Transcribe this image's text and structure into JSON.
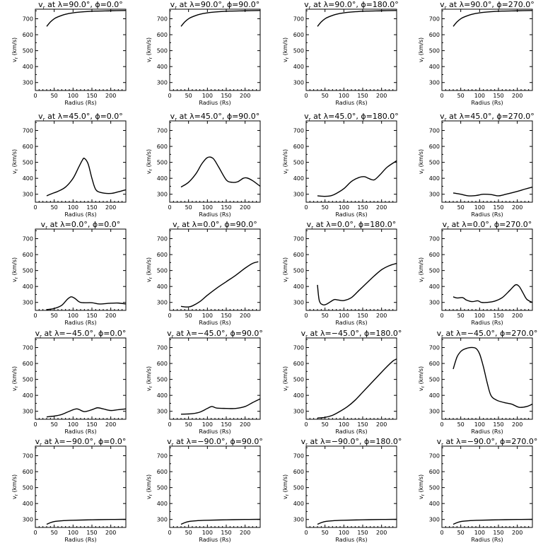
{
  "chart_data": {
    "type": "line",
    "layout": "grid-5x4",
    "xlabel": "Radius (Rs)",
    "ylabel": "vr (km/s)",
    "ylabel_base": "v",
    "ylabel_sub": "r",
    "ylabel_units": " (km/s)",
    "xlim": [
      0,
      240
    ],
    "ylim": [
      250,
      760
    ],
    "xticks": [
      0,
      50,
      100,
      150,
      200
    ],
    "yticks": [
      300,
      400,
      500,
      600,
      700
    ],
    "panels": [
      {
        "title": "vr at λ=90.0°, ϕ=0.0°",
        "title_base": "v",
        "title_sub": "r",
        "title_rest": " at λ=90.0°, ϕ=0.0°",
        "x": [
          30,
          40,
          50,
          60,
          80,
          100,
          130,
          160,
          200,
          240
        ],
        "y": [
          652,
          680,
          700,
          712,
          728,
          737,
          744,
          748,
          750,
          752
        ]
      },
      {
        "title": "vr at λ=90.0°, ϕ=90.0°",
        "title_base": "v",
        "title_sub": "r",
        "title_rest": " at λ=90.0°, ϕ=90.0°",
        "x": [
          30,
          40,
          50,
          60,
          80,
          100,
          130,
          160,
          200,
          240
        ],
        "y": [
          652,
          680,
          700,
          712,
          728,
          737,
          744,
          748,
          750,
          752
        ]
      },
      {
        "title": "vr at λ=90.0°, ϕ=180.0°",
        "title_base": "v",
        "title_sub": "r",
        "title_rest": " at λ=90.0°, ϕ=180.0°",
        "x": [
          30,
          40,
          50,
          60,
          80,
          100,
          130,
          160,
          200,
          240
        ],
        "y": [
          652,
          680,
          700,
          712,
          728,
          737,
          744,
          748,
          750,
          752
        ]
      },
      {
        "title": "vr at λ=90.0°, ϕ=270.0°",
        "title_base": "v",
        "title_sub": "r",
        "title_rest": " at λ=90.0°, ϕ=270.0°",
        "x": [
          30,
          40,
          50,
          60,
          80,
          100,
          130,
          160,
          200,
          240
        ],
        "y": [
          652,
          680,
          700,
          712,
          728,
          737,
          744,
          748,
          750,
          752
        ]
      },
      {
        "title": "vr at λ=45.0°, ϕ=0.0°",
        "title_base": "v",
        "title_sub": "r",
        "title_rest": " at λ=45.0°, ϕ=0.0°",
        "x": [
          30,
          45,
          60,
          80,
          100,
          115,
          125,
          130,
          140,
          150,
          160,
          175,
          200,
          220,
          240
        ],
        "y": [
          290,
          305,
          318,
          345,
          400,
          470,
          515,
          525,
          490,
          400,
          330,
          310,
          305,
          315,
          328
        ]
      },
      {
        "title": "vr at λ=45.0°, ϕ=90.0°",
        "title_base": "v",
        "title_sub": "r",
        "title_rest": " at λ=45.0°, ϕ=90.0°",
        "x": [
          30,
          50,
          70,
          85,
          100,
          115,
          130,
          150,
          165,
          180,
          195,
          205,
          220,
          240
        ],
        "y": [
          345,
          375,
          430,
          490,
          530,
          525,
          470,
          390,
          375,
          378,
          400,
          402,
          385,
          350
        ]
      },
      {
        "title": "vr at λ=45.0°, ϕ=180.0°",
        "title_base": "v",
        "title_sub": "r",
        "title_rest": " at λ=45.0°, ϕ=180.0°",
        "x": [
          30,
          50,
          65,
          80,
          100,
          120,
          140,
          155,
          165,
          180,
          195,
          215,
          240
        ],
        "y": [
          290,
          287,
          290,
          305,
          335,
          380,
          405,
          410,
          400,
          390,
          420,
          470,
          510
        ]
      },
      {
        "title": "vr at λ=45.0°, ϕ=270.0°",
        "title_base": "v",
        "title_sub": "r",
        "title_rest": " at λ=45.0°, ϕ=270.0°",
        "x": [
          30,
          50,
          70,
          90,
          110,
          130,
          150,
          170,
          200,
          220,
          240
        ],
        "y": [
          308,
          300,
          290,
          292,
          300,
          298,
          290,
          300,
          318,
          332,
          345
        ]
      },
      {
        "title": "vr at λ=0.0°, ϕ=0.0°",
        "title_base": "v",
        "title_sub": "r",
        "title_rest": " at λ=0.0°, ϕ=0.0°",
        "x": [
          30,
          50,
          70,
          85,
          95,
          105,
          120,
          150,
          170,
          200,
          220,
          240
        ],
        "y": [
          255,
          262,
          282,
          320,
          335,
          325,
          300,
          298,
          290,
          295,
          296,
          290
        ]
      },
      {
        "title": "vr at λ=0.0°, ϕ=90.0°",
        "title_base": "v",
        "title_sub": "r",
        "title_rest": " at λ=0.0°, ϕ=90.0°",
        "x": [
          30,
          40,
          50,
          60,
          80,
          100,
          125,
          150,
          175,
          200,
          220,
          235
        ],
        "y": [
          275,
          272,
          272,
          278,
          305,
          345,
          390,
          430,
          470,
          515,
          545,
          555
        ]
      },
      {
        "title": "vr at λ=0.0°, ϕ=180.0°",
        "title_base": "v",
        "title_sub": "r",
        "title_rest": " at λ=0.0°, ϕ=180.0°",
        "x": [
          30,
          35,
          45,
          55,
          65,
          75,
          85,
          100,
          120,
          140,
          160,
          180,
          200,
          220,
          240
        ],
        "y": [
          410,
          310,
          285,
          290,
          305,
          318,
          315,
          312,
          330,
          375,
          420,
          465,
          505,
          530,
          545
        ]
      },
      {
        "title": "vr at λ=0.0°, ϕ=270.0°",
        "title_base": "v",
        "title_sub": "r",
        "title_rest": " at λ=0.0°, ϕ=270.0°",
        "x": [
          30,
          40,
          55,
          65,
          80,
          95,
          105,
          120,
          140,
          160,
          180,
          195,
          205,
          215,
          225,
          240
        ],
        "y": [
          335,
          328,
          330,
          315,
          305,
          310,
          300,
          300,
          308,
          330,
          375,
          410,
          400,
          360,
          320,
          300
        ]
      },
      {
        "title": "vr at λ=−45.0°, ϕ=0.0°",
        "title_base": "v",
        "title_sub": "r",
        "title_rest": " at λ=−45.0°, ϕ=0.0°",
        "x": [
          30,
          50,
          70,
          90,
          110,
          130,
          150,
          165,
          180,
          200,
          220,
          240
        ],
        "y": [
          265,
          270,
          280,
          300,
          315,
          298,
          310,
          322,
          315,
          305,
          310,
          315
        ]
      },
      {
        "title": "vr at λ=−45.0°, ϕ=90.0°",
        "title_base": "v",
        "title_sub": "r",
        "title_rest": " at λ=−45.0°, ϕ=90.0°",
        "x": [
          30,
          45,
          60,
          80,
          100,
          112,
          125,
          150,
          175,
          200,
          220,
          240
        ],
        "y": [
          282,
          283,
          285,
          295,
          318,
          330,
          320,
          318,
          318,
          330,
          355,
          378
        ]
      },
      {
        "title": "vr at λ=−45.0°, ϕ=180.0°",
        "title_base": "v",
        "title_sub": "r",
        "title_rest": " at λ=−45.0°, ϕ=180.0°",
        "x": [
          30,
          50,
          70,
          90,
          110,
          130,
          150,
          170,
          190,
          210,
          230,
          240
        ],
        "y": [
          258,
          262,
          275,
          300,
          330,
          370,
          420,
          470,
          520,
          570,
          615,
          628
        ]
      },
      {
        "title": "vr at λ=−45.0°, ϕ=270.0°",
        "title_base": "v",
        "title_sub": "r",
        "title_rest": " at λ=−45.0°, ϕ=270.0°",
        "x": [
          30,
          40,
          50,
          60,
          75,
          90,
          100,
          110,
          120,
          130,
          145,
          165,
          185,
          205,
          225,
          240
        ],
        "y": [
          565,
          640,
          675,
          690,
          700,
          695,
          660,
          580,
          480,
          400,
          370,
          355,
          345,
          325,
          330,
          345
        ]
      },
      {
        "title": "vr at λ=−90.0°, ϕ=0.0°",
        "title_base": "v",
        "title_sub": "r",
        "title_rest": " at λ=−90.0°, ϕ=0.0°",
        "x": [
          30,
          40,
          50,
          70,
          100,
          150,
          200,
          240
        ],
        "y": [
          270,
          280,
          287,
          292,
          295,
          298,
          300,
          301
        ]
      },
      {
        "title": "vr at λ=−90.0°, ϕ=90.0°",
        "title_base": "v",
        "title_sub": "r",
        "title_rest": " at λ=−90.0°, ϕ=90.0°",
        "x": [
          30,
          40,
          50,
          70,
          100,
          150,
          200,
          240
        ],
        "y": [
          270,
          280,
          287,
          292,
          295,
          298,
          300,
          301
        ]
      },
      {
        "title": "vr at λ=−90.0°, ϕ=180.0°",
        "title_base": "v",
        "title_sub": "r",
        "title_rest": " at λ=−90.0°, ϕ=180.0°",
        "x": [
          30,
          40,
          50,
          70,
          100,
          150,
          200,
          240
        ],
        "y": [
          270,
          280,
          287,
          292,
          295,
          298,
          300,
          301
        ]
      },
      {
        "title": "vr at λ=−90.0°, ϕ=270.0°",
        "title_base": "v",
        "title_sub": "r",
        "title_rest": " at λ=−90.0°, ϕ=270.0°",
        "x": [
          30,
          40,
          50,
          70,
          100,
          150,
          200,
          240
        ],
        "y": [
          270,
          280,
          287,
          292,
          295,
          298,
          300,
          301
        ]
      }
    ]
  }
}
